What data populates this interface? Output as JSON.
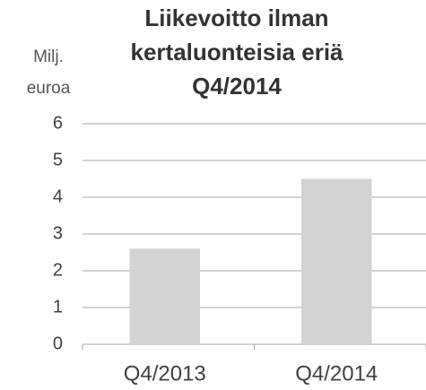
{
  "chart_data": {
    "type": "bar",
    "title": [
      "Liikevoitto ilman",
      "kertaluonteisia eriä",
      "Q4/2014"
    ],
    "y_label": [
      "Milj.",
      "euroa"
    ],
    "categories": [
      "Q4/2013",
      "Q4/2014"
    ],
    "values": [
      2.6,
      4.5
    ],
    "color": "#d3d3d3",
    "ylim": [
      0,
      6
    ],
    "yticks": [
      0,
      1,
      2,
      3,
      4,
      5,
      6
    ],
    "grid": true
  }
}
